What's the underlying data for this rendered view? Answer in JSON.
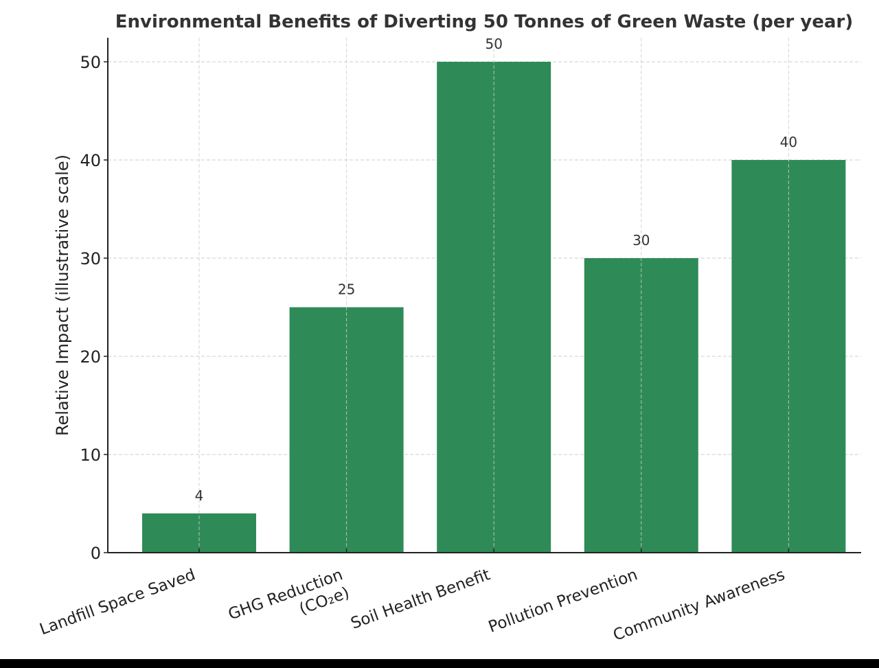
{
  "chart_data": {
    "type": "bar",
    "title": "Environmental Benefits of Diverting 50 Tonnes of Green Waste (per year)",
    "xlabel": "",
    "ylabel": "Relative Impact (illustrative scale)",
    "categories": [
      [
        "Landfill Space Saved"
      ],
      [
        "GHG Reduction",
        "(CO₂e)"
      ],
      [
        "Soil Health Benefit"
      ],
      [
        "Pollution Prevention"
      ],
      [
        "Community Awareness"
      ]
    ],
    "values": [
      4,
      25,
      50,
      30,
      40
    ],
    "data_labels": [
      "4",
      "25",
      "50",
      "30",
      "40"
    ],
    "ylim": [
      0,
      52.5
    ],
    "yticks": [
      0,
      10,
      20,
      30,
      40,
      50
    ],
    "grid": true,
    "legend": "none",
    "colors": {
      "bar": "#2e8b57",
      "grid": "#cccccc",
      "axis": "#222222",
      "title": "#333333"
    }
  }
}
